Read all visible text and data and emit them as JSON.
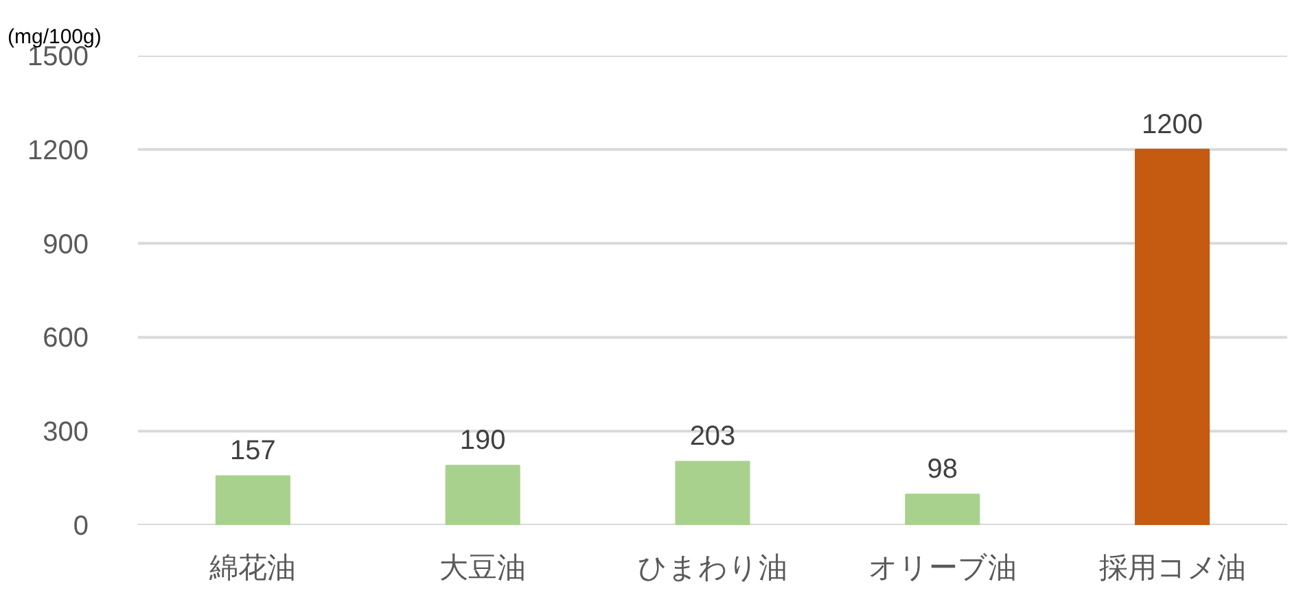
{
  "chart_data": {
    "type": "bar",
    "ylabel": "(mg/100g)",
    "categories": [
      "綿花油",
      "大豆油",
      "ひまわり油",
      "オリーブ油",
      "採用コメ油"
    ],
    "values": [
      157,
      190,
      203,
      98,
      1200
    ],
    "colors": [
      "#a9d18e",
      "#a9d18e",
      "#a9d18e",
      "#a9d18e",
      "#c55a11"
    ],
    "ylim": [
      0,
      1500
    ],
    "yticks": [
      0,
      300,
      600,
      900,
      1200,
      1500
    ],
    "grid": "y",
    "data_labels": true
  }
}
